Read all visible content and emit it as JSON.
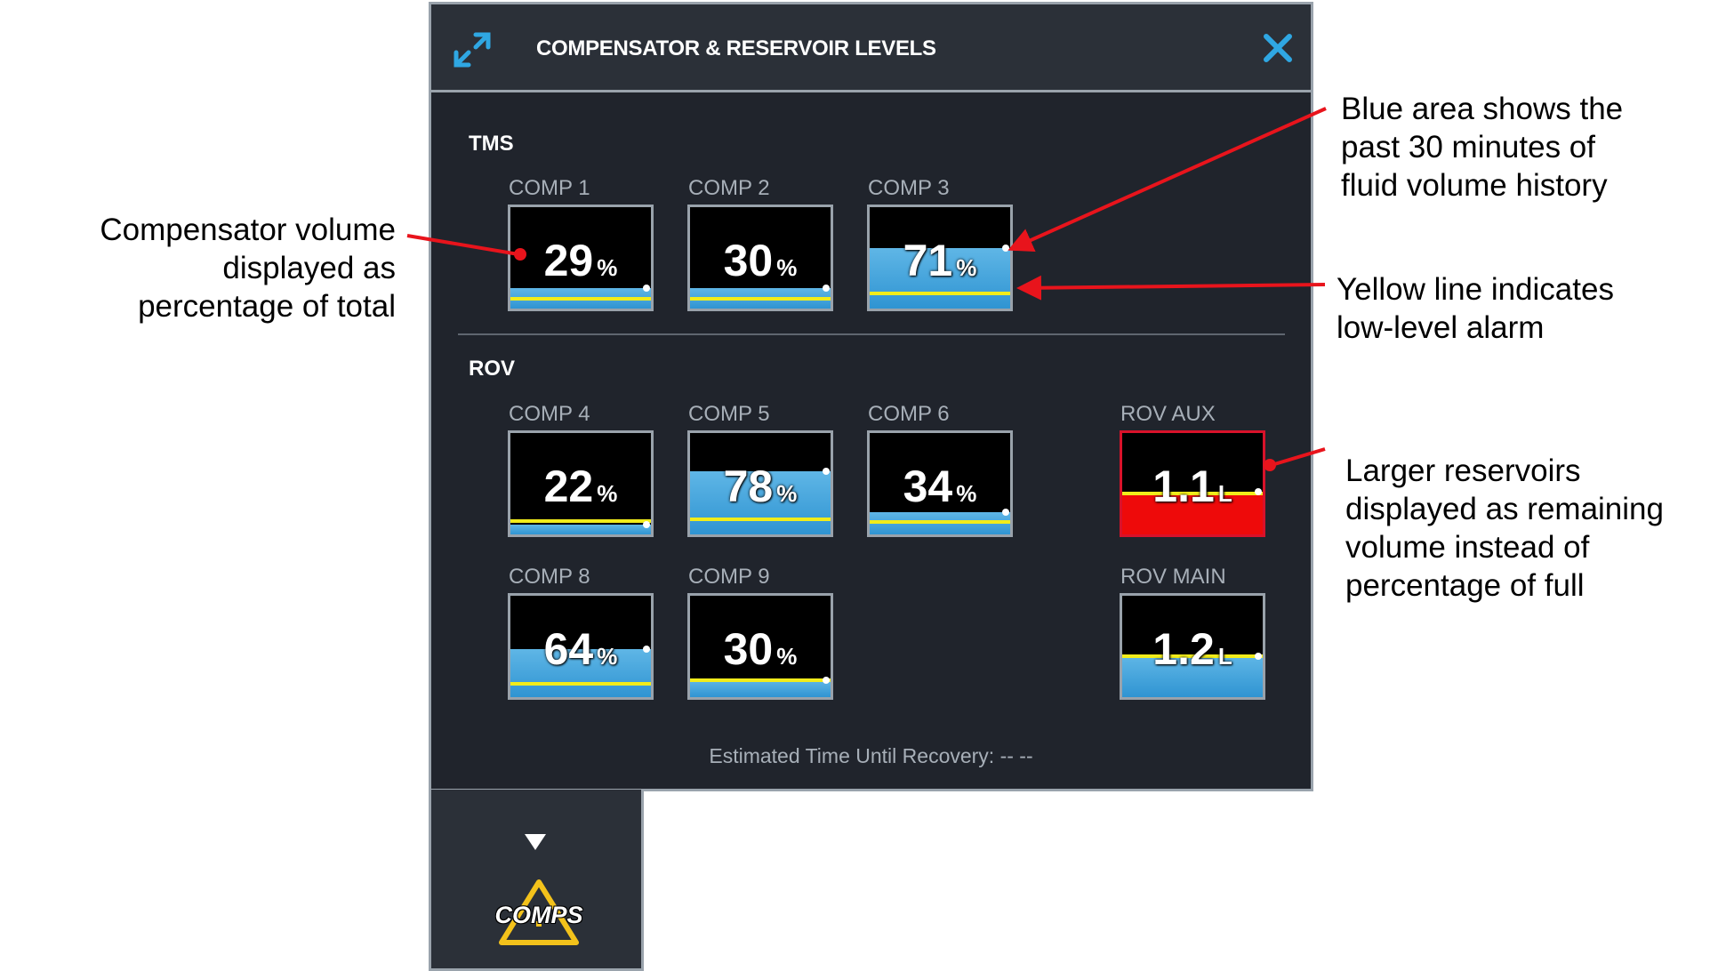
{
  "panel": {
    "title": "COMPENSATOR & RESERVOIR LEVELS",
    "expand_icon": "expand-arrows-icon",
    "close_icon": "close-x-icon",
    "recovery_text": "Estimated Time Until Recovery:  -- --"
  },
  "sections": {
    "tms": "TMS",
    "rov": "ROV"
  },
  "gauges": {
    "comp1": {
      "label": "COMP 1",
      "value": "29",
      "unit": "%",
      "level": 0.2,
      "alarm": 0.1,
      "alarm_state": false
    },
    "comp2": {
      "label": "COMP 2",
      "value": "30",
      "unit": "%",
      "level": 0.2,
      "alarm": 0.1,
      "alarm_state": false
    },
    "comp3": {
      "label": "COMP 3",
      "value": "71",
      "unit": "%",
      "level": 0.6,
      "alarm": 0.15,
      "alarm_state": false
    },
    "comp4": {
      "label": "COMP 4",
      "value": "22",
      "unit": "%",
      "level": 0.1,
      "alarm": 0.13,
      "alarm_state": false
    },
    "comp5": {
      "label": "COMP 5",
      "value": "78",
      "unit": "%",
      "level": 0.62,
      "alarm": 0.15,
      "alarm_state": false
    },
    "comp6": {
      "label": "COMP 6",
      "value": "34",
      "unit": "%",
      "level": 0.22,
      "alarm": 0.12,
      "alarm_state": false
    },
    "comp8": {
      "label": "COMP 8",
      "value": "64",
      "unit": "%",
      "level": 0.47,
      "alarm": 0.13,
      "alarm_state": false
    },
    "comp9": {
      "label": "COMP 9",
      "value": "30",
      "unit": "%",
      "level": 0.17,
      "alarm": 0.17,
      "alarm_state": false
    },
    "rov_aux": {
      "label": "ROV AUX",
      "value": "1.1",
      "unit": "L",
      "level": 0.42,
      "alarm": 0.4,
      "alarm_state": true
    },
    "rov_main": {
      "label": "ROV MAIN",
      "value": "1.2",
      "unit": "L",
      "level": 0.4,
      "alarm": 0.4,
      "alarm_state": false
    }
  },
  "tab": {
    "arrow_icon": "triangle-down-icon",
    "warning_icon": "warning-triangle-icon",
    "label": "COMPS"
  },
  "annotations": {
    "compensator": [
      "Compensator volume",
      "displayed as",
      "percentage of total"
    ],
    "blue_area": [
      "Blue area shows the",
      "past 30 minutes of",
      "fluid volume history"
    ],
    "yellow_line": [
      "Yellow line indicates",
      "low-level alarm"
    ],
    "reservoirs": [
      "Larger reservoirs",
      "displayed as remaining",
      "volume instead of",
      "percentage of full"
    ]
  },
  "colors": {
    "panel_bg": "#20242c",
    "fill_blue": "#3fa3dc",
    "alarm_yellow": "#f1ec1b",
    "alarm_red": "#ee0a0a",
    "close_cyan": "#2fa7e3",
    "annotation_arrow": "#e8141c"
  }
}
